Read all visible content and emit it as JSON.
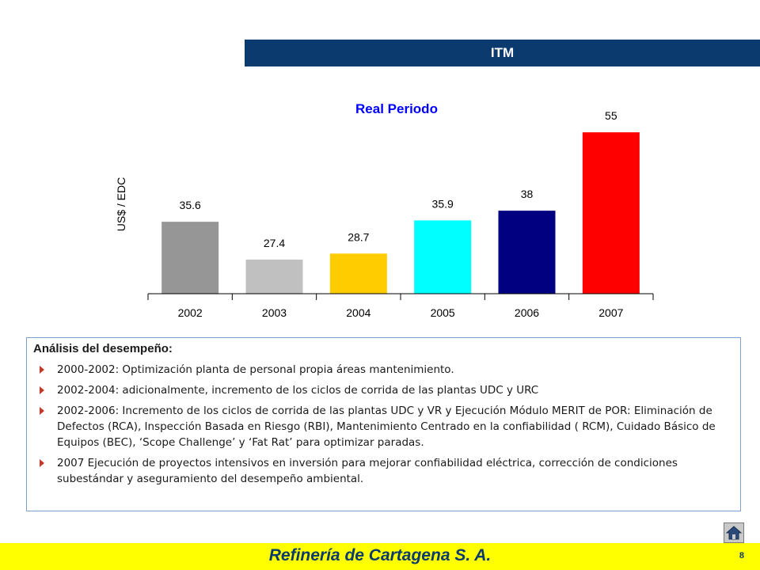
{
  "header": {
    "title": "ITM"
  },
  "chart_data": {
    "type": "bar",
    "title": "Real Periodo",
    "xlabel": "",
    "ylabel": "US$ / EDC",
    "categories": [
      "2002",
      "2003",
      "2004",
      "2005",
      "2006",
      "2007"
    ],
    "values": [
      35.6,
      27.4,
      28.7,
      35.9,
      38,
      55
    ],
    "value_labels": [
      "35.6",
      "27.4",
      "28.7",
      "35.9",
      "38",
      "55"
    ],
    "colors": [
      "#969696",
      "#c0c0c0",
      "#ffcc00",
      "#00ffff",
      "#000080",
      "#ff0000"
    ],
    "ylim": [
      20,
      60
    ],
    "grid": false,
    "legend": "none",
    "title_color": "#0000ff"
  },
  "analysis": {
    "heading": "Análisis del desempeño:",
    "items": [
      "2000-2002: Optimización planta de personal propia áreas mantenimiento.",
      "2002-2004: adicionalmente, incremento de los ciclos de corrida de las plantas UDC y URC",
      "2002-2006: Incremento de los ciclos de corrida de las plantas UDC y VR y Ejecución Módulo MERIT de POR: Eliminación de Defectos (RCA), Inspección Basada en Riesgo (RBI), Mantenimiento Centrado en la confiabilidad ( RCM), Cuidado Básico de Equipos (BEC), ‘Scope Challenge’ y ‘Fat Rat’ para optimizar paradas.",
      "2007 Ejecución de proyectos intensivos en inversión para mejorar confiabilidad eléctrica, corrección de condiciones subestándar y aseguramiento del desempeño ambiental."
    ]
  },
  "footer": {
    "company": "Refinería de Cartagena S. A.",
    "page_number": "8",
    "home_icon": "home-icon"
  },
  "colors": {
    "banner": "#0b3a6e",
    "footer_bg": "#ffff00",
    "bullet": "#c0392b"
  }
}
